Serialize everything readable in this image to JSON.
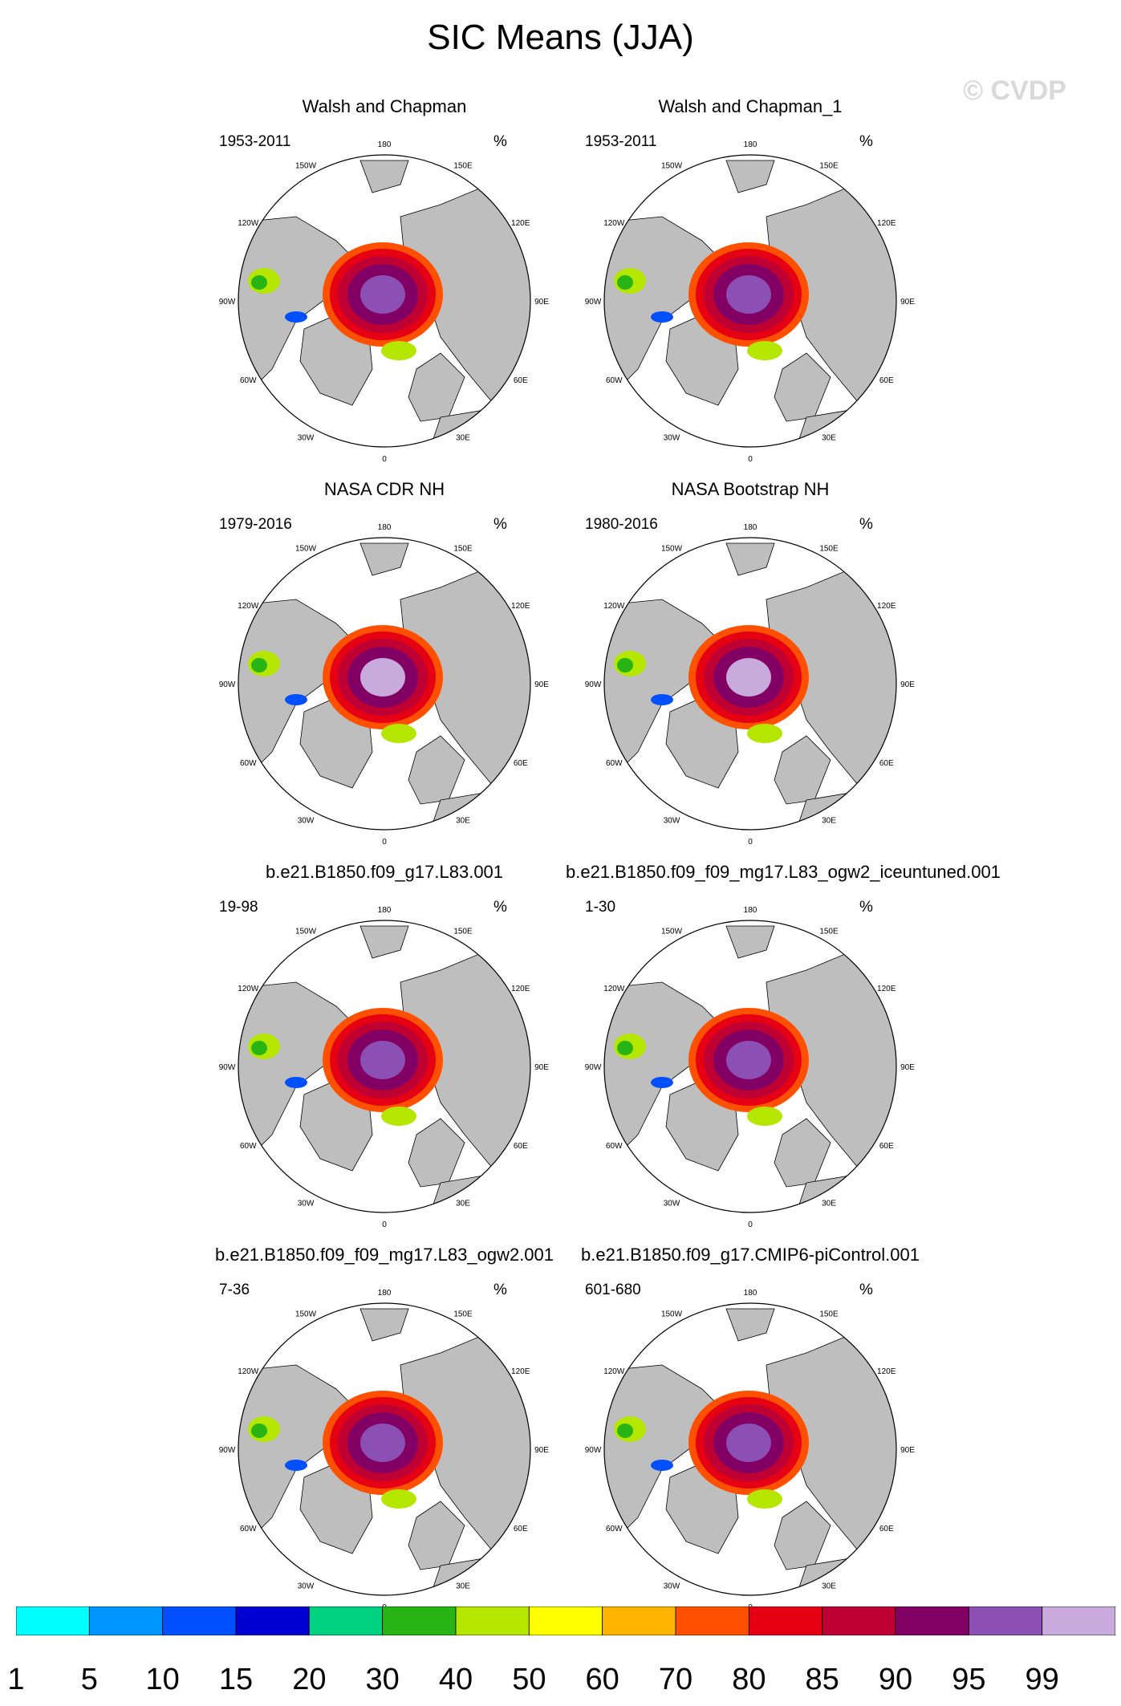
{
  "title": "SIC Means (JJA)",
  "watermark": "© CVDP",
  "unit": "%",
  "lon_labels": [
    "180",
    "150E",
    "120E",
    "90E",
    "60E",
    "30E",
    "0",
    "30W",
    "60W",
    "90W",
    "120W",
    "150W"
  ],
  "colors": {
    "land": "#bebebe",
    "ocean": "#ffffff",
    "scale": [
      "#00ffff",
      "#0096ff",
      "#0050ff",
      "#0000d2",
      "#00d282",
      "#28b414",
      "#b4e600",
      "#ffff00",
      "#ffb400",
      "#ff5000",
      "#e60014",
      "#be0032",
      "#820064",
      "#8c50b4",
      "#c8aadc"
    ]
  },
  "chart_data": [
    {
      "type": "heatmap",
      "title": "Walsh and Chapman",
      "period": "1953-2011",
      "unit": "%"
    },
    {
      "type": "heatmap",
      "title": "Walsh and Chapman_1",
      "period": "1953-2011",
      "unit": "%"
    },
    {
      "type": "heatmap",
      "title": "NASA CDR NH",
      "period": "1979-2016",
      "unit": "%"
    },
    {
      "type": "heatmap",
      "title": "NASA Bootstrap NH",
      "period": "1980-2016",
      "unit": "%"
    },
    {
      "type": "heatmap",
      "title": "b.e21.B1850.f09_g17.L83.001",
      "period": "19-98",
      "unit": "%"
    },
    {
      "type": "heatmap",
      "title": "b.e21.B1850.f09_f09_mg17.L83_ogw2_iceuntuned.001",
      "period": "1-30",
      "unit": "%"
    },
    {
      "type": "heatmap",
      "title": "b.e21.B1850.f09_f09_mg17.L83_ogw2.001",
      "period": "7-36",
      "unit": "%"
    },
    {
      "type": "heatmap",
      "title": "b.e21.B1850.f09_g17.CMIP6-piControl.001",
      "period": "601-680",
      "unit": "%"
    }
  ],
  "colorbar": {
    "labels": [
      "1",
      "5",
      "10",
      "15",
      "20",
      "30",
      "40",
      "50",
      "60",
      "70",
      "80",
      "85",
      "90",
      "95",
      "99"
    ]
  }
}
